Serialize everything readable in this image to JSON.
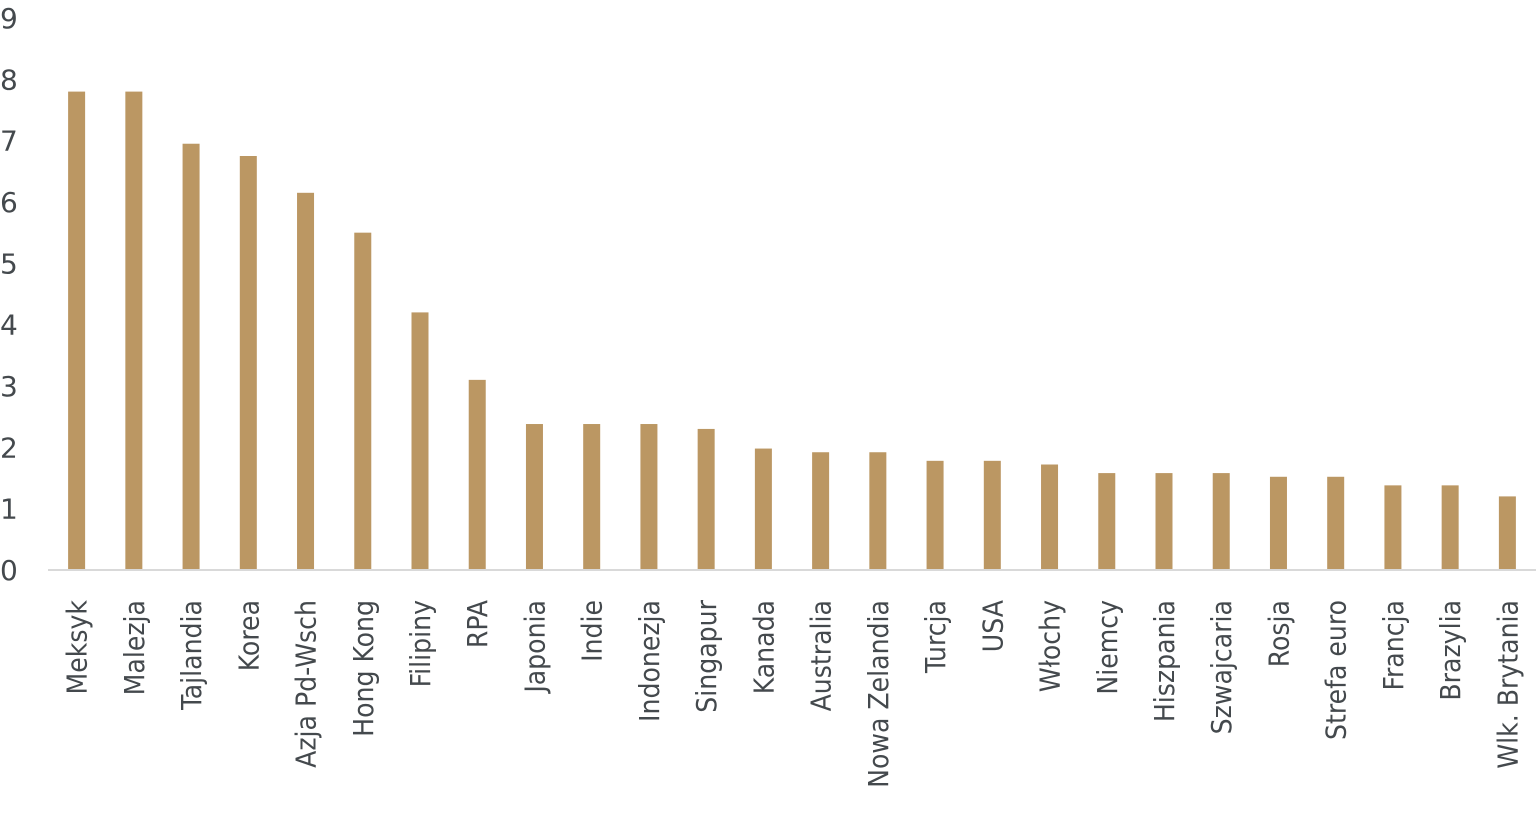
{
  "chart_data": {
    "type": "bar",
    "title": "",
    "xlabel": "",
    "ylabel": "",
    "ylim": [
      0,
      9
    ],
    "yticks": [
      "0",
      "1",
      "2",
      "3",
      "4",
      "5",
      "6",
      "7",
      "8",
      "9"
    ],
    "grid": false,
    "legend": "none",
    "bar_color": "#bb9763",
    "categories": [
      "Meksyk",
      "Malezja",
      "Tajlandia",
      "Korea",
      "Azja Pd-Wsch",
      "Hong Kong",
      "Filipiny",
      "RPA",
      "Japonia",
      "Indie",
      "Indonezja",
      "Singapur",
      "Kanada",
      "Australia",
      "Nowa Zelandia",
      "Turcja",
      "USA",
      "Włochy",
      "Niemcy",
      "Hiszpania",
      "Szwajcaria",
      "Rosja",
      "Strefa euro",
      "Francja",
      "Brazylia",
      "Wlk. Brytania"
    ],
    "values": [
      7.8,
      7.8,
      6.95,
      6.75,
      6.15,
      5.5,
      4.2,
      3.1,
      2.38,
      2.38,
      2.38,
      2.3,
      1.98,
      1.92,
      1.92,
      1.78,
      1.78,
      1.72,
      1.58,
      1.58,
      1.58,
      1.52,
      1.52,
      1.38,
      1.38,
      1.2
    ]
  }
}
